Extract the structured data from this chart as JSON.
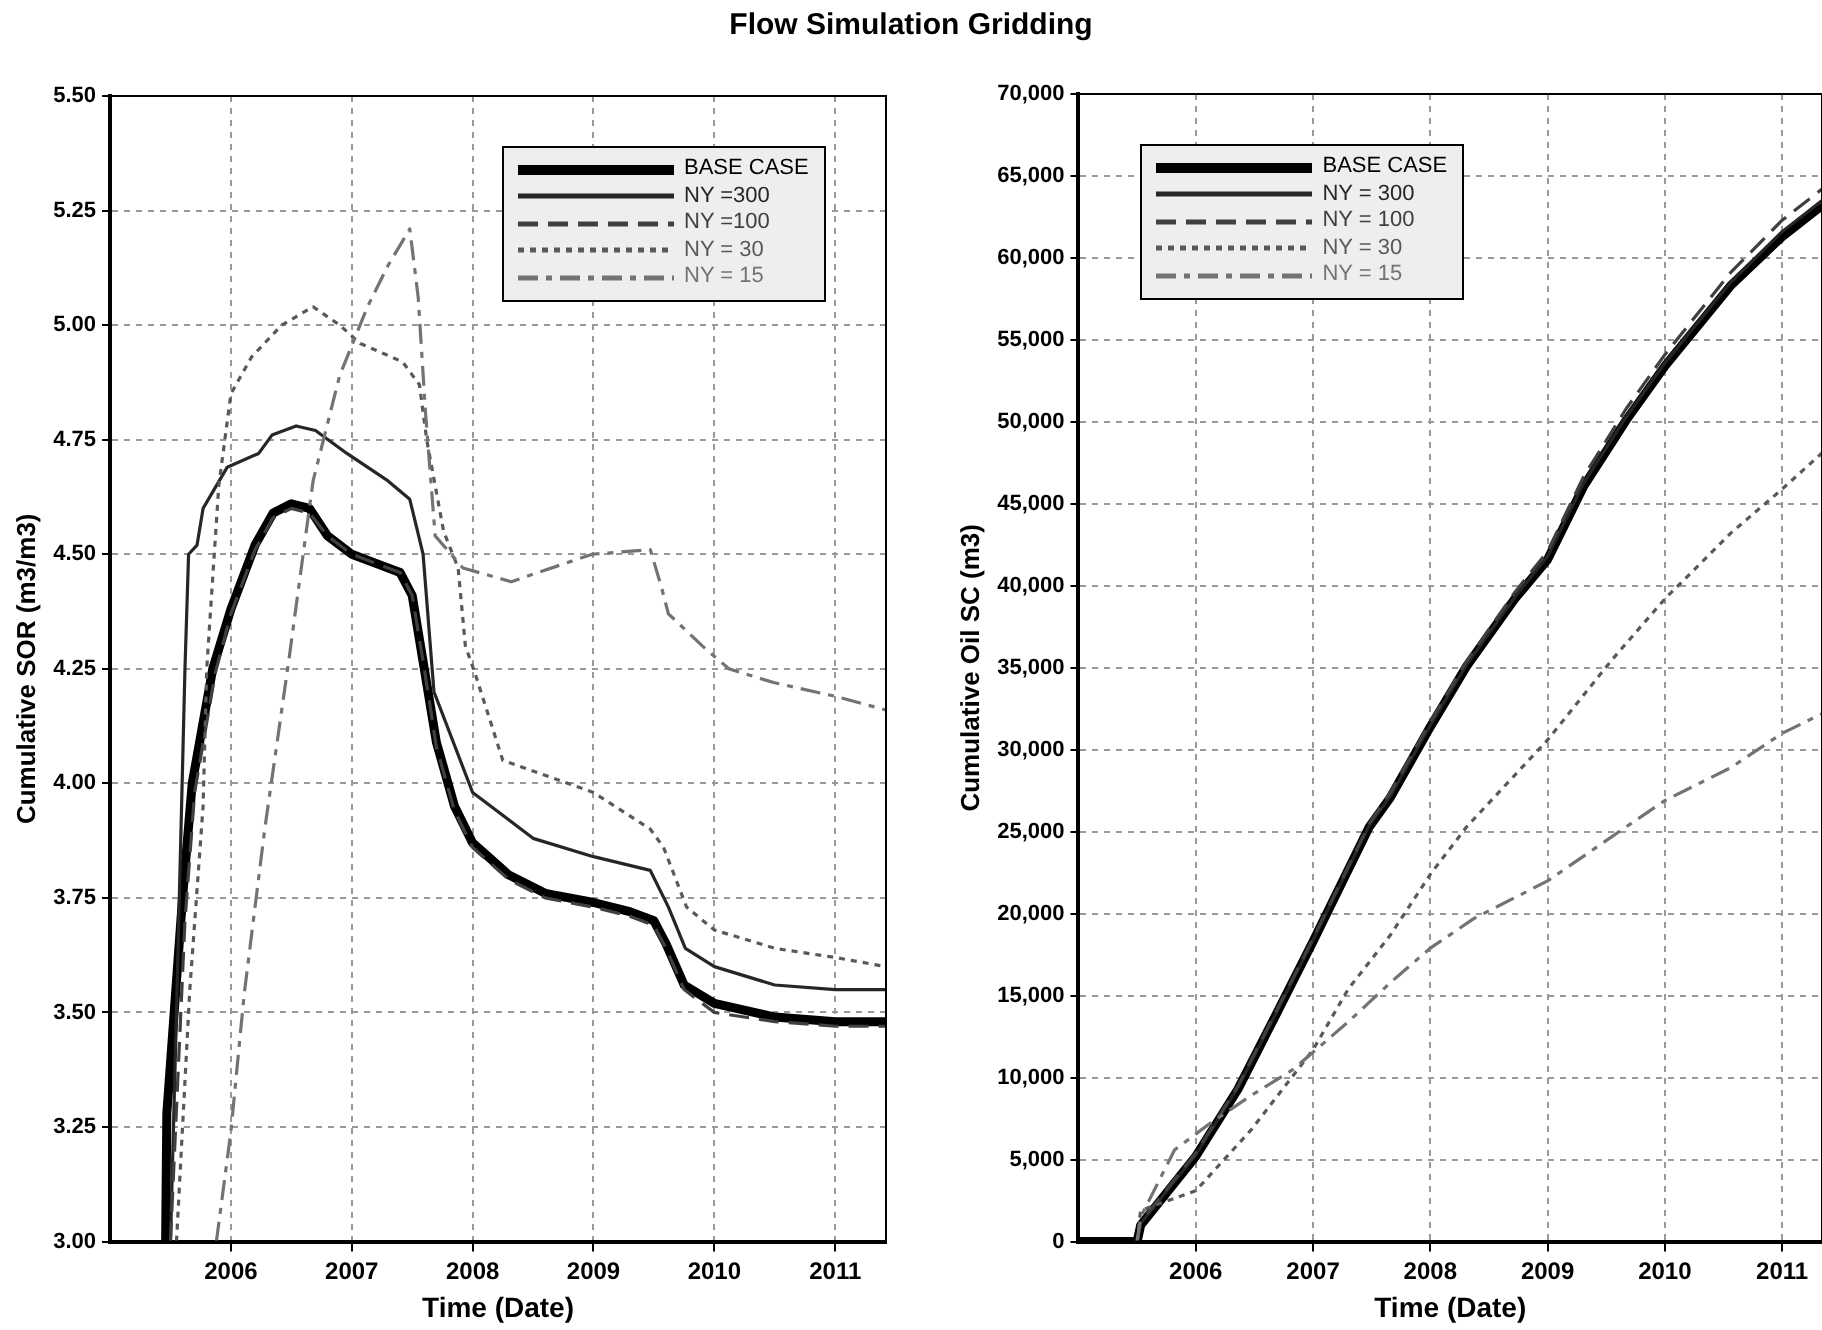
{
  "chart_data": [
    {
      "type": "line",
      "title": "Flow Simulation Gridding",
      "xlabel": "Time (Date)",
      "ylabel": "Cumulative SOR (m3/m3)",
      "xlim": [
        2005,
        2011.42
      ],
      "xticks": [
        2006,
        2007,
        2008,
        2009,
        2010,
        2011
      ],
      "ylim": [
        3,
        5.5
      ],
      "yticks": [
        {
          "value": 3,
          "label": "3.00"
        },
        {
          "value": 3.25,
          "label": "3.25"
        },
        {
          "value": 3.5,
          "label": "3.50"
        },
        {
          "value": 3.75,
          "label": "3.75"
        },
        {
          "value": 4,
          "label": "4.00"
        },
        {
          "value": 4.25,
          "label": "4.25"
        },
        {
          "value": 4.5,
          "label": "4.50"
        },
        {
          "value": 4.75,
          "label": "4.75"
        },
        {
          "value": 5,
          "label": "5.00"
        },
        {
          "value": 5.25,
          "label": "5.25"
        },
        {
          "value": 5.5,
          "label": "5.50"
        }
      ],
      "grid": true,
      "legend": "top right",
      "marker": "none",
      "series": [
        {
          "name": "BASE CASE",
          "color": "#000000",
          "line_style": "solid",
          "x": [
            2005.46,
            2005.47,
            2005.6,
            2005.68,
            2005.85,
            2006.0,
            2006.2,
            2006.35,
            2006.5,
            2006.65,
            2006.8,
            2007.0,
            2007.2,
            2007.4,
            2007.5,
            2007.6,
            2007.7,
            2007.85,
            2008.0,
            2008.3,
            2008.6,
            2009.0,
            2009.3,
            2009.5,
            2009.6,
            2009.75,
            2010.0,
            2010.5,
            2011.0,
            2011.42
          ],
          "values": [
            3.0,
            3.28,
            3.75,
            4.0,
            4.25,
            4.38,
            4.52,
            4.59,
            4.61,
            4.6,
            4.54,
            4.5,
            4.48,
            4.46,
            4.41,
            4.25,
            4.09,
            3.95,
            3.87,
            3.8,
            3.76,
            3.74,
            3.72,
            3.7,
            3.65,
            3.56,
            3.52,
            3.49,
            3.48,
            3.48
          ]
        },
        {
          "name": "NY =300",
          "color": "#262626",
          "line_style": "solid",
          "x": [
            2005.5,
            2005.55,
            2005.62,
            2005.65,
            2005.72,
            2005.77,
            2005.97,
            2006.23,
            2006.34,
            2006.54,
            2006.7,
            2006.96,
            2007.3,
            2007.48,
            2007.59,
            2007.68,
            2008.0,
            2008.5,
            2009.0,
            2009.47,
            2009.62,
            2009.76,
            2010.0,
            2010.5,
            2011.0,
            2011.42
          ],
          "values": [
            3.0,
            3.5,
            4.25,
            4.5,
            4.52,
            4.6,
            4.69,
            4.72,
            4.76,
            4.78,
            4.77,
            4.72,
            4.66,
            4.62,
            4.5,
            4.2,
            3.98,
            3.88,
            3.84,
            3.81,
            3.73,
            3.64,
            3.6,
            3.56,
            3.55,
            3.55
          ]
        },
        {
          "name": "NY =100",
          "color": "#404040",
          "line_style": "dashed",
          "x": [
            2005.5,
            2005.62,
            2005.7,
            2005.87,
            2006.0,
            2006.2,
            2006.35,
            2006.5,
            2006.65,
            2006.8,
            2007.0,
            2007.2,
            2007.4,
            2007.5,
            2007.6,
            2007.7,
            2007.85,
            2008.0,
            2008.3,
            2008.6,
            2009.0,
            2009.3,
            2009.5,
            2009.6,
            2009.75,
            2010.0,
            2010.5,
            2011.0,
            2011.42
          ],
          "values": [
            3.0,
            3.7,
            3.98,
            4.24,
            4.37,
            4.51,
            4.58,
            4.6,
            4.59,
            4.54,
            4.5,
            4.48,
            4.46,
            4.41,
            4.25,
            4.08,
            3.94,
            3.86,
            3.79,
            3.75,
            3.73,
            3.71,
            3.69,
            3.64,
            3.55,
            3.5,
            3.48,
            3.47,
            3.47
          ]
        },
        {
          "name": "NY = 30",
          "color": "#595959",
          "line_style": "dotted",
          "x": [
            2005.55,
            2005.66,
            2005.77,
            2005.8,
            2005.9,
            2006.0,
            2006.17,
            2006.42,
            2006.68,
            2006.9,
            2007.07,
            2007.42,
            2007.56,
            2007.62,
            2007.76,
            2007.88,
            2007.94,
            2008.02,
            2008.25,
            2009.0,
            2009.47,
            2009.58,
            2009.77,
            2010.0,
            2010.5,
            2011.0,
            2011.42
          ],
          "values": [
            3.0,
            3.55,
            3.95,
            4.25,
            4.65,
            4.85,
            4.93,
            5.0,
            5.04,
            5.0,
            4.96,
            4.92,
            4.87,
            4.75,
            4.55,
            4.47,
            4.3,
            4.24,
            4.05,
            3.98,
            3.9,
            3.86,
            3.73,
            3.68,
            3.64,
            3.62,
            3.6
          ]
        },
        {
          "name": "NY = 15",
          "color": "#737373",
          "line_style": "dashdot",
          "x": [
            2005.88,
            2006.0,
            2006.11,
            2006.28,
            2006.48,
            2006.68,
            2006.9,
            2007.13,
            2007.3,
            2007.48,
            2007.55,
            2007.61,
            2007.69,
            2007.92,
            2008.32,
            2008.54,
            2008.99,
            2009.47,
            2009.56,
            2009.62,
            2009.9,
            2010.12,
            2010.49,
            2011.0,
            2011.42
          ],
          "values": [
            3.0,
            3.24,
            3.54,
            3.9,
            4.27,
            4.66,
            4.89,
            5.04,
            5.13,
            5.21,
            5.06,
            4.81,
            4.54,
            4.47,
            4.44,
            4.46,
            4.5,
            4.51,
            4.43,
            4.37,
            4.3,
            4.25,
            4.22,
            4.19,
            4.16
          ]
        }
      ]
    },
    {
      "type": "line",
      "xlabel": "Time (Date)",
      "ylabel": "Cumulative Oil SC (m3)",
      "xlim": [
        2005,
        2011.34
      ],
      "xticks": [
        2006,
        2007,
        2008,
        2009,
        2010,
        2011
      ],
      "ylim": [
        0,
        70000
      ],
      "yticks": [
        0,
        {
          "value": 5000,
          "label": "5,000"
        },
        {
          "value": 10000,
          "label": "10,000"
        },
        {
          "value": 15000,
          "label": "15,000"
        },
        {
          "value": 20000,
          "label": "20,000"
        },
        {
          "value": 25000,
          "label": "25,000"
        },
        {
          "value": 30000,
          "label": "30,000"
        },
        {
          "value": 35000,
          "label": "35,000"
        },
        {
          "value": 40000,
          "label": "40,000"
        },
        {
          "value": 45000,
          "label": "45,000"
        },
        {
          "value": 50000,
          "label": "50,000"
        },
        {
          "value": 55000,
          "label": "55,000"
        },
        {
          "value": 60000,
          "label": "60,000"
        },
        {
          "value": 65000,
          "label": "65,000"
        },
        {
          "value": 70000,
          "label": "70,000"
        }
      ],
      "grid": true,
      "legend": "top left",
      "marker": "none",
      "series": [
        {
          "name": "BASE CASE",
          "color": "#000000",
          "line_style": "solid",
          "x": [
            2005.0,
            2005.5,
            2005.53,
            2006.0,
            2006.36,
            2006.71,
            2007.0,
            2007.48,
            2007.66,
            2008.0,
            2008.31,
            2008.72,
            2009.0,
            2009.31,
            2009.67,
            2010.0,
            2010.56,
            2011.0,
            2011.34
          ],
          "values": [
            0,
            0,
            1000,
            5200,
            9300,
            14200,
            18300,
            25300,
            27100,
            31400,
            35100,
            39200,
            41600,
            46100,
            50100,
            53400,
            58300,
            61300,
            63200
          ]
        },
        {
          "name": "NY = 300",
          "color": "#262626",
          "line_style": "solid",
          "x": [
            2005.5,
            2005.53,
            2006.0,
            2006.36,
            2006.71,
            2007.0,
            2007.48,
            2007.66,
            2008.0,
            2008.31,
            2008.72,
            2009.0,
            2009.31,
            2009.67,
            2010.0,
            2010.56,
            2011.0,
            2011.34
          ],
          "values": [
            0,
            1100,
            5300,
            9400,
            14300,
            18400,
            25400,
            27200,
            31500,
            35200,
            39300,
            41800,
            46300,
            50300,
            53600,
            58500,
            61600,
            63500
          ]
        },
        {
          "name": "NY = 100",
          "color": "#404040",
          "line_style": "dashed",
          "x": [
            2005.5,
            2005.53,
            2006.0,
            2006.36,
            2006.71,
            2007.0,
            2007.48,
            2007.66,
            2008.0,
            2008.31,
            2008.72,
            2009.0,
            2009.31,
            2009.67,
            2010.0,
            2010.56,
            2011.0,
            2011.34
          ],
          "values": [
            0,
            1200,
            5400,
            9500,
            14400,
            18500,
            25500,
            27400,
            31700,
            35400,
            39600,
            42100,
            46700,
            50800,
            54100,
            59100,
            62300,
            64200
          ]
        },
        {
          "name": "NY = 30",
          "color": "#595959",
          "line_style": "dotted",
          "x": [
            2005.5,
            2005.53,
            2006.0,
            2006.47,
            2007.0,
            2007.3,
            2007.66,
            2008.0,
            2008.31,
            2009.0,
            2009.55,
            2010.0,
            2010.56,
            2011.0,
            2011.34
          ],
          "values": [
            0,
            1900,
            3100,
            6800,
            11700,
            15400,
            18700,
            22400,
            25300,
            30600,
            35500,
            39200,
            43200,
            45900,
            48100
          ]
        },
        {
          "name": "NY = 15",
          "color": "#737373",
          "line_style": "dashdot",
          "x": [
            2005.5,
            2005.53,
            2005.82,
            2006.12,
            2006.47,
            2006.83,
            2007.3,
            2007.66,
            2008.0,
            2008.37,
            2009.0,
            2009.67,
            2010.0,
            2010.56,
            2011.0,
            2011.34
          ],
          "values": [
            0,
            1500,
            5600,
            7200,
            8900,
            10500,
            13400,
            15800,
            17900,
            19700,
            22000,
            25300,
            26900,
            28900,
            31000,
            32200
          ]
        }
      ]
    }
  ]
}
